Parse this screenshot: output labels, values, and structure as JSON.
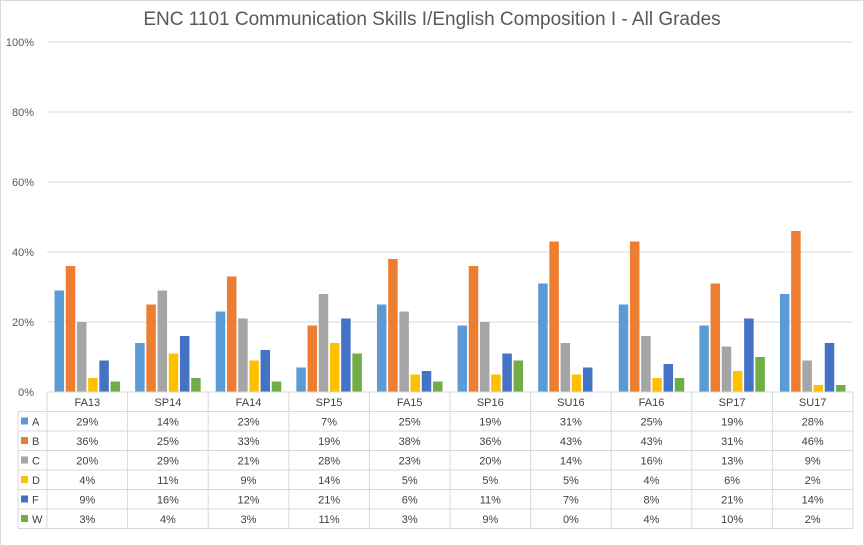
{
  "chart_data": {
    "type": "bar",
    "title": "ENC 1101 Communication Skills I/English Composition I - All Grades",
    "categories": [
      "FA13",
      "SP14",
      "FA14",
      "SP15",
      "FA15",
      "SP16",
      "SU16",
      "FA16",
      "SP17",
      "SU17"
    ],
    "ylim": [
      0,
      100
    ],
    "yticks": [
      "0%",
      "20%",
      "40%",
      "60%",
      "80%",
      "100%"
    ],
    "grid": true,
    "legend": "data table",
    "series": [
      {
        "name": "A",
        "color": "#5b9bd5",
        "values": [
          29,
          14,
          23,
          7,
          25,
          19,
          31,
          25,
          19,
          28
        ],
        "labels": [
          "29%",
          "14%",
          "23%",
          "7%",
          "25%",
          "19%",
          "31%",
          "25%",
          "19%",
          "28%"
        ]
      },
      {
        "name": "B",
        "color": "#ed7d31",
        "values": [
          36,
          25,
          33,
          19,
          38,
          36,
          43,
          43,
          31,
          46
        ],
        "labels": [
          "36%",
          "25%",
          "33%",
          "19%",
          "38%",
          "36%",
          "43%",
          "43%",
          "31%",
          "46%"
        ]
      },
      {
        "name": "C",
        "color": "#a5a5a5",
        "values": [
          20,
          29,
          21,
          28,
          23,
          20,
          14,
          16,
          13,
          9
        ],
        "labels": [
          "20%",
          "29%",
          "21%",
          "28%",
          "23%",
          "20%",
          "14%",
          "16%",
          "13%",
          "9%"
        ]
      },
      {
        "name": "D",
        "color": "#ffc000",
        "values": [
          4,
          11,
          9,
          14,
          5,
          5,
          5,
          4,
          6,
          2
        ],
        "labels": [
          "4%",
          "11%",
          "9%",
          "14%",
          "5%",
          "5%",
          "5%",
          "4%",
          "6%",
          "2%"
        ]
      },
      {
        "name": "F",
        "color": "#4472c4",
        "values": [
          9,
          16,
          12,
          21,
          6,
          11,
          7,
          8,
          21,
          14
        ],
        "labels": [
          "9%",
          "16%",
          "12%",
          "21%",
          "6%",
          "11%",
          "7%",
          "8%",
          "21%",
          "14%"
        ]
      },
      {
        "name": "W",
        "color": "#70ad47",
        "values": [
          3,
          4,
          3,
          11,
          3,
          9,
          0,
          4,
          10,
          2
        ],
        "labels": [
          "3%",
          "4%",
          "3%",
          "11%",
          "3%",
          "9%",
          "0%",
          "4%",
          "10%",
          "2%"
        ]
      }
    ]
  }
}
